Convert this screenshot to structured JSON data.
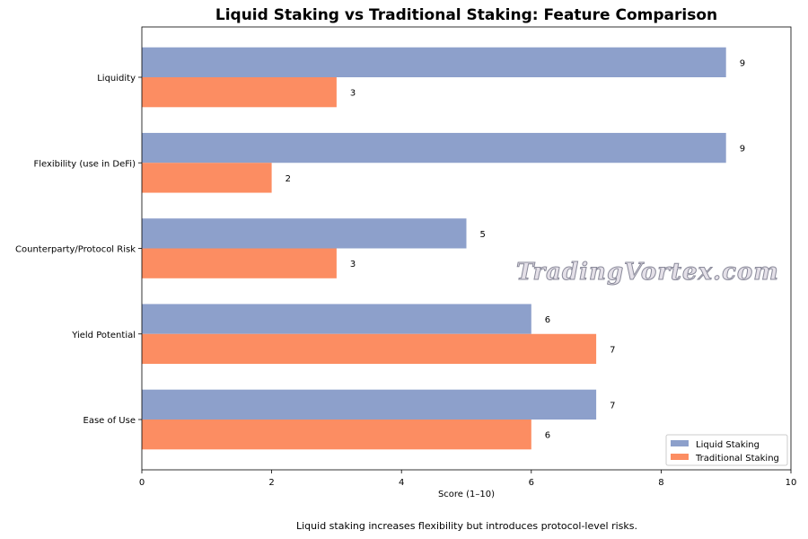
{
  "chart_data": {
    "type": "bar",
    "orientation": "horizontal",
    "title": "Liquid Staking vs Traditional Staking: Feature Comparison",
    "xlabel": "Score (1–10)",
    "ylabel": "",
    "xlim": [
      0,
      10
    ],
    "xticks": [
      "0",
      "2",
      "4",
      "6",
      "8",
      "10"
    ],
    "grid": false,
    "legend_position": "bottom-right",
    "categories": [
      "Liquidity",
      "Flexibility (use in DeFi)",
      "Counterparty/Protocol Risk",
      "Yield Potential",
      "Ease of Use"
    ],
    "series": [
      {
        "name": "Liquid Staking",
        "color": "#8da0cb",
        "values": [
          9,
          9,
          5,
          6,
          7
        ]
      },
      {
        "name": "Traditional Staking",
        "color": "#fc8d62",
        "values": [
          3,
          2,
          3,
          7,
          6
        ]
      }
    ],
    "caption": "Liquid staking increases flexibility but introduces protocol-level risks."
  },
  "watermark": "TradingVortex.com"
}
